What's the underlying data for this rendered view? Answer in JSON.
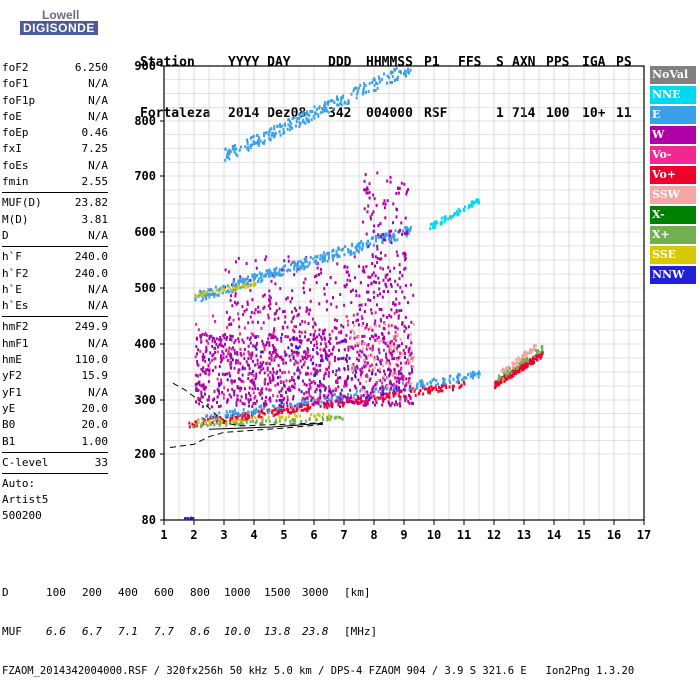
{
  "logo": {
    "brand_top": "Lowell",
    "brand_bottom": "DIGISONDE"
  },
  "header": {
    "row1": [
      "Station",
      "YYYY DAY",
      "DDD",
      "HHMMSS",
      "P1",
      "FFS",
      "S",
      "AXN",
      "PPS",
      "IGA",
      "PS"
    ],
    "row2": [
      "Fortaleza",
      "2014 Dez08",
      "342",
      "004000",
      "RSF",
      "",
      "1",
      "714",
      "100",
      "10+",
      "11"
    ]
  },
  "params": {
    "group1": [
      {
        "label": "foF2",
        "value": "6.250"
      },
      {
        "label": "foF1",
        "value": "N/A"
      },
      {
        "label": "foF1p",
        "value": "N/A"
      },
      {
        "label": "foE",
        "value": "N/A"
      },
      {
        "label": "foEp",
        "value": "0.46"
      },
      {
        "label": "fxI",
        "value": "7.25"
      },
      {
        "label": "foEs",
        "value": "N/A"
      },
      {
        "label": "fmin",
        "value": "2.55"
      }
    ],
    "group2": [
      {
        "label": "MUF(D)",
        "value": "23.82"
      },
      {
        "label": "M(D)",
        "value": "3.81"
      },
      {
        "label": "D",
        "value": "N/A"
      }
    ],
    "group3": [
      {
        "label": "h`F",
        "value": "240.0"
      },
      {
        "label": "h`F2",
        "value": "240.0"
      },
      {
        "label": "h`E",
        "value": "N/A"
      },
      {
        "label": "h`Es",
        "value": "N/A"
      }
    ],
    "group4": [
      {
        "label": "hmF2",
        "value": "249.9"
      },
      {
        "label": "hmF1",
        "value": "N/A"
      },
      {
        "label": "hmE",
        "value": "110.0"
      },
      {
        "label": "yF2",
        "value": "15.9"
      },
      {
        "label": "yF1",
        "value": "N/A"
      },
      {
        "label": "yE",
        "value": "20.0"
      },
      {
        "label": "B0",
        "value": "20.0"
      },
      {
        "label": "B1",
        "value": "1.00"
      }
    ],
    "clevel": {
      "label": "C-level",
      "value": "33"
    },
    "auto": [
      "Auto:",
      "Artist5",
      "500200"
    ]
  },
  "legend": [
    {
      "label": "NoVal",
      "color": "#808080"
    },
    {
      "label": "NNE",
      "color": "#00d8f0"
    },
    {
      "label": "E",
      "color": "#3aa0e8"
    },
    {
      "label": "W",
      "color": "#b000a8"
    },
    {
      "label": "Vo-",
      "color": "#f02890"
    },
    {
      "label": "Vo+",
      "color": "#f0002a"
    },
    {
      "label": "SSW",
      "color": "#f4a6a6"
    },
    {
      "label": "X-",
      "color": "#008000"
    },
    {
      "label": "X+",
      "color": "#70b050"
    },
    {
      "label": "SSE",
      "color": "#d8c800"
    },
    {
      "label": "NNW",
      "color": "#2020d8"
    }
  ],
  "footer": {
    "d_label": "D",
    "d_values": [
      "100",
      "200",
      "400",
      "600",
      "800",
      "1000",
      "1500",
      "3000",
      "[km]"
    ],
    "muf_label": "MUF",
    "muf_values": [
      "6.6",
      "6.7",
      "7.1",
      "7.7",
      "8.6",
      "10.0",
      "13.8",
      "23.8",
      "[MHz]"
    ],
    "file_info": "FZAOM_2014342004000.RSF / 320fx256h 50 kHz 5.0 km / DPS-4 FZAOM 904 / 3.9 S 321.6 E   Ion2Png 1.3.20"
  },
  "chart_data": {
    "type": "scatter",
    "x_ticks": [
      "1",
      "2",
      "3",
      "4",
      "5",
      "6",
      "7",
      "8",
      "9",
      "10",
      "11",
      "12",
      "13",
      "14",
      "15",
      "16",
      "17"
    ],
    "y_ticks": [
      "80",
      "200",
      "300",
      "400",
      "500",
      "600",
      "700",
      "800",
      "900"
    ],
    "xlim": [
      1,
      17
    ],
    "y_axis_note": "virtual height axis (km), nonlinear below 200",
    "profile_curve": [
      [
        1.2,
        212
      ],
      [
        2.0,
        218
      ],
      [
        2.5,
        232
      ],
      [
        3.0,
        240
      ],
      [
        4.0,
        244
      ],
      [
        5.0,
        248
      ],
      [
        5.8,
        252
      ],
      [
        6.3,
        255
      ]
    ],
    "profile_curve_upper": [
      [
        1.3,
        330
      ],
      [
        1.7,
        318
      ],
      [
        2.0,
        306
      ],
      [
        2.4,
        290
      ],
      [
        2.8,
        270
      ],
      [
        3.2,
        256
      ],
      [
        3.5,
        252
      ],
      [
        4.5,
        254
      ],
      [
        5.5,
        256
      ],
      [
        6.3,
        258
      ]
    ],
    "echo_regions": [
      {
        "name": "F-trace-o",
        "color": "#f0002a",
        "f_range": [
          1.8,
          11.0
        ],
        "h_start": 258,
        "h_end": 330,
        "density": 260
      },
      {
        "name": "F-trace-e",
        "color": "#3aa0e8",
        "f_range": [
          2.2,
          11.5
        ],
        "h_start": 268,
        "h_end": 348,
        "density": 200
      },
      {
        "name": "F-trace-ssw",
        "color": "#70b050",
        "f_range": [
          1.9,
          7.0
        ],
        "h_start": 255,
        "h_end": 270,
        "density": 70
      },
      {
        "name": "F-trace-sse",
        "color": "#d8c800",
        "f_range": [
          2.0,
          6.5
        ],
        "h_start": 262,
        "h_end": 275,
        "density": 45
      },
      {
        "name": "spread-w-1",
        "color": "#b000a8",
        "f_range": [
          2.0,
          9.3
        ],
        "h_start": 290,
        "h_end": 420,
        "density": 900
      },
      {
        "name": "spread-w-2",
        "color": "#b000a8",
        "f_range": [
          3.0,
          9.3
        ],
        "h_start": 420,
        "h_end": 560,
        "density": 260
      },
      {
        "name": "spread-vo",
        "color": "#f02890",
        "f_range": [
          2.0,
          9.3
        ],
        "h_start": 300,
        "h_end": 460,
        "density": 160
      },
      {
        "name": "spread-nnw",
        "color": "#2020d8",
        "f_range": [
          2.4,
          9.3
        ],
        "h_start": 300,
        "h_end": 420,
        "density": 60
      },
      {
        "name": "spread-ssw",
        "color": "#f4a6a6",
        "f_range": [
          7.2,
          9.3
        ],
        "h_start": 300,
        "h_end": 440,
        "density": 80
      },
      {
        "name": "second-hop-e",
        "color": "#3aa0e8",
        "f_range": [
          2.0,
          9.2
        ],
        "h_start": 485,
        "h_end": 605,
        "density": 330
      },
      {
        "name": "second-hop-sse",
        "color": "#d8c800",
        "f_range": [
          2.0,
          4.0
        ],
        "h_start": 490,
        "h_end": 510,
        "density": 30
      },
      {
        "name": "second-hop-nne",
        "color": "#00d8f0",
        "f_range": [
          9.8,
          11.5
        ],
        "h_start": 610,
        "h_end": 660,
        "density": 60
      },
      {
        "name": "third-hop-e",
        "color": "#3aa0e8",
        "f_range": [
          3.0,
          9.2
        ],
        "h_start": 740,
        "h_end": 900,
        "density": 260
      },
      {
        "name": "high-f-o",
        "color": "#f0002a",
        "f_range": [
          12.0,
          13.6
        ],
        "h_start": 330,
        "h_end": 385,
        "density": 170
      },
      {
        "name": "high-f-ssw",
        "color": "#f4a6a6",
        "f_range": [
          12.2,
          13.4
        ],
        "h_start": 350,
        "h_end": 400,
        "density": 50
      },
      {
        "name": "high-f-x",
        "color": "#70b050",
        "f_range": [
          12.1,
          13.6
        ],
        "h_start": 340,
        "h_end": 395,
        "density": 40
      },
      {
        "name": "vertical-streak-w",
        "color": "#b000a8",
        "f_range": [
          7.6,
          9.1
        ],
        "h_start": 430,
        "h_end": 720,
        "density": 140
      },
      {
        "name": "low-f-blob",
        "color": "#2020d8",
        "f_range": [
          1.55,
          1.95
        ],
        "h_start": 82,
        "h_end": 86,
        "density": 8
      }
    ]
  }
}
